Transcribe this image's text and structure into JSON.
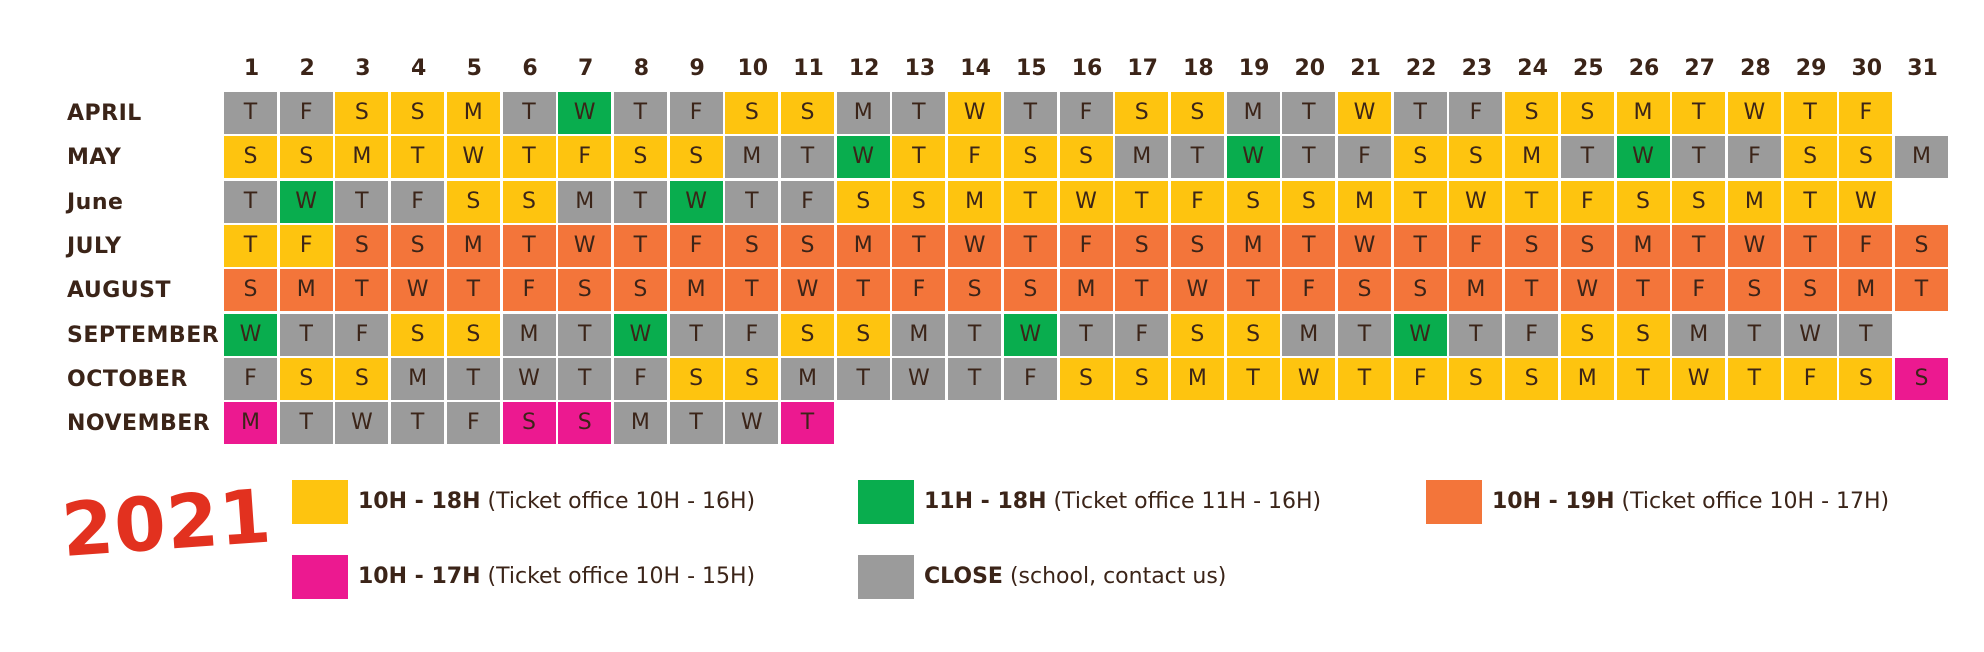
{
  "year": "2021",
  "days": [
    "1",
    "2",
    "3",
    "4",
    "5",
    "6",
    "7",
    "8",
    "9",
    "10",
    "11",
    "12",
    "13",
    "14",
    "15",
    "16",
    "17",
    "18",
    "19",
    "20",
    "21",
    "22",
    "23",
    "24",
    "25",
    "26",
    "27",
    "28",
    "29",
    "30",
    "31"
  ],
  "colors": {
    "Y": "#fec40f",
    "G": "#09ad4e",
    "O": "#f3753a",
    "P": "#ec1990",
    "X": "#9b9b9b"
  },
  "months": [
    {
      "name": "APRIL",
      "letters": [
        "T",
        "F",
        "S",
        "S",
        "M",
        "T",
        "W",
        "T",
        "F",
        "S",
        "S",
        "M",
        "T",
        "W",
        "T",
        "F",
        "S",
        "S",
        "M",
        "T",
        "W",
        "T",
        "F",
        "S",
        "S",
        "M",
        "T",
        "W",
        "T",
        "F"
      ],
      "status": [
        "X",
        "X",
        "Y",
        "Y",
        "Y",
        "X",
        "G",
        "X",
        "X",
        "Y",
        "Y",
        "X",
        "X",
        "Y",
        "X",
        "X",
        "Y",
        "Y",
        "X",
        "X",
        "Y",
        "X",
        "X",
        "Y",
        "Y",
        "Y",
        "Y",
        "Y",
        "Y",
        "Y"
      ]
    },
    {
      "name": "MAY",
      "letters": [
        "S",
        "S",
        "M",
        "T",
        "W",
        "T",
        "F",
        "S",
        "S",
        "M",
        "T",
        "W",
        "T",
        "F",
        "S",
        "S",
        "M",
        "T",
        "W",
        "T",
        "F",
        "S",
        "S",
        "M",
        "T",
        "W",
        "T",
        "F",
        "S",
        "S",
        "M"
      ],
      "status": [
        "Y",
        "Y",
        "Y",
        "Y",
        "Y",
        "Y",
        "Y",
        "Y",
        "Y",
        "X",
        "X",
        "G",
        "Y",
        "Y",
        "Y",
        "Y",
        "X",
        "X",
        "G",
        "X",
        "X",
        "Y",
        "Y",
        "Y",
        "X",
        "G",
        "X",
        "X",
        "Y",
        "Y",
        "X"
      ]
    },
    {
      "name": "June",
      "letters": [
        "T",
        "W",
        "T",
        "F",
        "S",
        "S",
        "M",
        "T",
        "W",
        "T",
        "F",
        "S",
        "S",
        "M",
        "T",
        "W",
        "T",
        "F",
        "S",
        "S",
        "M",
        "T",
        "W",
        "T",
        "F",
        "S",
        "S",
        "M",
        "T",
        "W"
      ],
      "status": [
        "X",
        "G",
        "X",
        "X",
        "Y",
        "Y",
        "X",
        "X",
        "G",
        "X",
        "X",
        "Y",
        "Y",
        "Y",
        "Y",
        "Y",
        "Y",
        "Y",
        "Y",
        "Y",
        "Y",
        "Y",
        "Y",
        "Y",
        "Y",
        "Y",
        "Y",
        "Y",
        "Y",
        "Y"
      ]
    },
    {
      "name": "JULY",
      "letters": [
        "T",
        "F",
        "S",
        "S",
        "M",
        "T",
        "W",
        "T",
        "F",
        "S",
        "S",
        "M",
        "T",
        "W",
        "T",
        "F",
        "S",
        "S",
        "M",
        "T",
        "W",
        "T",
        "F",
        "S",
        "S",
        "M",
        "T",
        "W",
        "T",
        "F",
        "S"
      ],
      "status": [
        "Y",
        "Y",
        "O",
        "O",
        "O",
        "O",
        "O",
        "O",
        "O",
        "O",
        "O",
        "O",
        "O",
        "O",
        "O",
        "O",
        "O",
        "O",
        "O",
        "O",
        "O",
        "O",
        "O",
        "O",
        "O",
        "O",
        "O",
        "O",
        "O",
        "O",
        "O"
      ]
    },
    {
      "name": "AUGUST",
      "letters": [
        "S",
        "M",
        "T",
        "W",
        "T",
        "F",
        "S",
        "S",
        "M",
        "T",
        "W",
        "T",
        "F",
        "S",
        "S",
        "M",
        "T",
        "W",
        "T",
        "F",
        "S",
        "S",
        "M",
        "T",
        "W",
        "T",
        "F",
        "S",
        "S",
        "M",
        "T"
      ],
      "status": [
        "O",
        "O",
        "O",
        "O",
        "O",
        "O",
        "O",
        "O",
        "O",
        "O",
        "O",
        "O",
        "O",
        "O",
        "O",
        "O",
        "O",
        "O",
        "O",
        "O",
        "O",
        "O",
        "O",
        "O",
        "O",
        "O",
        "O",
        "O",
        "O",
        "O",
        "O"
      ]
    },
    {
      "name": "SEPTEMBER",
      "letters": [
        "W",
        "T",
        "F",
        "S",
        "S",
        "M",
        "T",
        "W",
        "T",
        "F",
        "S",
        "S",
        "M",
        "T",
        "W",
        "T",
        "F",
        "S",
        "S",
        "M",
        "T",
        "W",
        "T",
        "F",
        "S",
        "S",
        "M",
        "T",
        "W",
        "T"
      ],
      "status": [
        "G",
        "X",
        "X",
        "Y",
        "Y",
        "X",
        "X",
        "G",
        "X",
        "X",
        "Y",
        "Y",
        "X",
        "X",
        "G",
        "X",
        "X",
        "Y",
        "Y",
        "X",
        "X",
        "G",
        "X",
        "X",
        "Y",
        "Y",
        "X",
        "X",
        "X",
        "X"
      ]
    },
    {
      "name": "OCTOBER",
      "letters": [
        "F",
        "S",
        "S",
        "M",
        "T",
        "W",
        "T",
        "F",
        "S",
        "S",
        "M",
        "T",
        "W",
        "T",
        "F",
        "S",
        "S",
        "M",
        "T",
        "W",
        "T",
        "F",
        "S",
        "S",
        "M",
        "T",
        "W",
        "T",
        "F",
        "S",
        "S"
      ],
      "status": [
        "X",
        "Y",
        "Y",
        "X",
        "X",
        "X",
        "X",
        "X",
        "Y",
        "Y",
        "X",
        "X",
        "X",
        "X",
        "X",
        "Y",
        "Y",
        "Y",
        "Y",
        "Y",
        "Y",
        "Y",
        "Y",
        "Y",
        "Y",
        "Y",
        "Y",
        "Y",
        "Y",
        "Y",
        "P"
      ]
    },
    {
      "name": "NOVEMBER",
      "letters": [
        "M",
        "T",
        "W",
        "T",
        "F",
        "S",
        "S",
        "M",
        "T",
        "W",
        "T"
      ],
      "status": [
        "P",
        "X",
        "X",
        "X",
        "X",
        "P",
        "P",
        "X",
        "X",
        "X",
        "P"
      ]
    }
  ],
  "legend": [
    {
      "key": "Y",
      "hours": "10H - 18H",
      "detail": "(Ticket office 10H - 16H)"
    },
    {
      "key": "G",
      "hours": "11H - 18H",
      "detail": "(Ticket office 11H - 16H)"
    },
    {
      "key": "O",
      "hours": "10H - 19H",
      "detail": "(Ticket office 10H - 17H)"
    },
    {
      "key": "P",
      "hours": "10H - 17H",
      "detail": "(Ticket office 10H - 15H)"
    },
    {
      "key": "X",
      "hours": "CLOSE",
      "detail": "(school, contact us)"
    }
  ]
}
